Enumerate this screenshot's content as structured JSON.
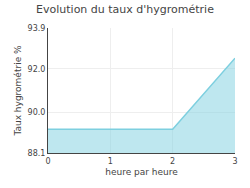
{
  "chart_data": {
    "type": "area",
    "title": "Evolution du taux d'hygrométrie",
    "xlabel": "heure par heure",
    "ylabel": "Taux hygrométrie %",
    "x": [
      0,
      2,
      3
    ],
    "values": [
      89.2,
      89.2,
      92.5
    ],
    "color": "#7dcfdf",
    "xlim": [
      0,
      3
    ],
    "xticks": [
      0,
      1,
      2,
      3
    ],
    "ylim": [
      88.1,
      93.9
    ],
    "yticks": [
      88.1,
      {
        "value": 90.0,
        "label": "90.0"
      },
      {
        "value": 92.0,
        "label": "92.0"
      },
      93.9
    ],
    "grid": true
  }
}
